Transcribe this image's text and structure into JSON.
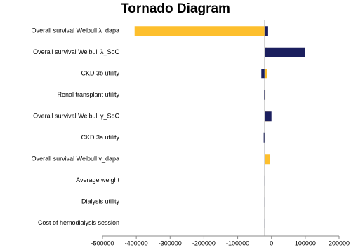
{
  "chart_data": {
    "type": "tornado",
    "title": "Tornado Diagram",
    "categories": [
      "Overall survival Weibull λ_dapa",
      "Overall survival Weibull λ_SoC",
      "CKD 3b utility",
      "Renal transplant utility",
      "Overall survival Weibull γ_SoC",
      "CKD 3a utility",
      "Overall survival Weibull γ_dapa",
      "Average weight",
      "Dialysis utility",
      "Cost of hemodialysis session"
    ],
    "base": -20000,
    "series": [
      {
        "color": "#fdbf2d",
        "values": [
          -405000,
          -12000,
          -12000,
          -18000,
          -6000,
          -19000,
          -4000,
          -19000,
          -19000,
          -19000
        ]
      },
      {
        "color": "#1b1f5e",
        "values": [
          -10000,
          100000,
          -30000,
          -22000,
          0,
          -23000,
          -20000,
          -21000,
          -21000,
          -21000
        ]
      }
    ],
    "xlim": [
      -500000,
      200000
    ],
    "xticks": [
      -500000,
      -400000,
      -300000,
      -200000,
      -100000,
      0,
      100000,
      200000
    ]
  }
}
